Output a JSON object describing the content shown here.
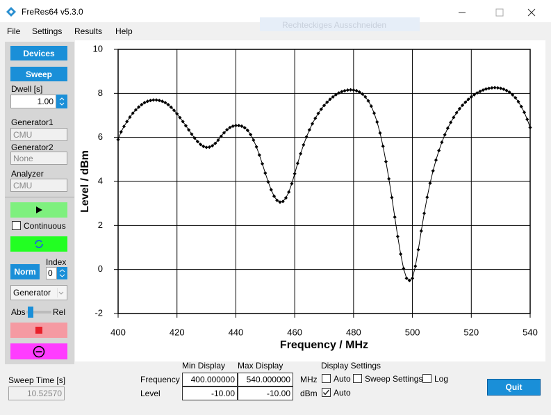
{
  "title_bar": {
    "title": "FreRes64 v5.3.0"
  },
  "menu": [
    "File",
    "Settings",
    "Results",
    "Help"
  ],
  "overlay_hint": "Rechteckiges Ausschneiden",
  "side_panel": {
    "devices": "Devices",
    "sweep": "Sweep",
    "dwell_label": "Dwell [s]",
    "dwell_value": "1.00",
    "generator1_label": "Generator1",
    "generator1_value": "CMU",
    "generator2_label": "Generator2",
    "generator2_value": "None",
    "analyzer_label": "Analyzer",
    "analyzer_value": "CMU",
    "continuous": "Continuous",
    "norm": "Norm",
    "index_label": "Index",
    "index_value": "0",
    "combo": "Generator",
    "abs": "Abs",
    "rel": "Rel"
  },
  "chart_data": {
    "type": "line",
    "x_label": "Frequency / MHz",
    "y_label": "Level / dBm",
    "color": "#000000",
    "grid": true,
    "xlim": [
      400,
      540
    ],
    "xticks": [
      400,
      420,
      440,
      460,
      480,
      500,
      520,
      540
    ],
    "ylim": [
      -2,
      10
    ],
    "yticks": [
      -2,
      0,
      2,
      4,
      6,
      8,
      10
    ],
    "x": [
      400,
      401,
      402,
      403,
      404,
      405,
      406,
      407,
      408,
      409,
      410,
      411,
      412,
      413,
      414,
      415,
      416,
      417,
      418,
      419,
      420,
      421,
      422,
      423,
      424,
      425,
      426,
      427,
      428,
      429,
      430,
      431,
      432,
      433,
      434,
      435,
      436,
      437,
      438,
      439,
      440,
      441,
      442,
      443,
      444,
      445,
      446,
      447,
      448,
      449,
      450,
      451,
      452,
      453,
      454,
      455,
      456,
      457,
      458,
      459,
      460,
      461,
      462,
      463,
      464,
      465,
      466,
      467,
      468,
      469,
      470,
      471,
      472,
      473,
      474,
      475,
      476,
      477,
      478,
      479,
      480,
      481,
      482,
      483,
      484,
      485,
      486,
      487,
      488,
      489,
      490,
      491,
      492,
      493,
      494,
      495,
      496,
      497,
      498,
      499,
      500,
      501,
      502,
      503,
      504,
      505,
      506,
      507,
      508,
      509,
      510,
      511,
      512,
      513,
      514,
      515,
      516,
      517,
      518,
      519,
      520,
      521,
      522,
      523,
      524,
      525,
      526,
      527,
      528,
      529,
      530,
      531,
      532,
      533,
      534,
      535,
      536,
      537,
      538,
      539,
      540
    ],
    "values": [
      5.9,
      6.25,
      6.5,
      6.72,
      6.92,
      7.1,
      7.25,
      7.38,
      7.49,
      7.58,
      7.64,
      7.68,
      7.7,
      7.7,
      7.68,
      7.64,
      7.58,
      7.49,
      7.37,
      7.23,
      7.07,
      6.9,
      6.72,
      6.53,
      6.34,
      6.15,
      5.97,
      5.81,
      5.68,
      5.59,
      5.55,
      5.56,
      5.62,
      5.73,
      5.88,
      6.05,
      6.21,
      6.35,
      6.45,
      6.51,
      6.54,
      6.54,
      6.51,
      6.44,
      6.32,
      6.13,
      5.88,
      5.57,
      5.2,
      4.8,
      4.38,
      3.98,
      3.62,
      3.33,
      3.14,
      3.06,
      3.09,
      3.25,
      3.52,
      3.9,
      4.35,
      4.82,
      5.26,
      5.66,
      6.02,
      6.34,
      6.62,
      6.87,
      7.09,
      7.28,
      7.45,
      7.6,
      7.73,
      7.84,
      7.94,
      8.02,
      8.08,
      8.12,
      8.15,
      8.16,
      8.15,
      8.12,
      8.06,
      7.97,
      7.84,
      7.66,
      7.42,
      7.1,
      6.7,
      6.2,
      5.6,
      4.9,
      4.12,
      3.27,
      2.38,
      1.5,
      0.7,
      0.04,
      -0.4,
      -0.5,
      -0.4,
      0.15,
      0.9,
      1.75,
      2.55,
      3.28,
      3.92,
      4.48,
      4.97,
      5.4,
      5.78,
      6.12,
      6.42,
      6.68,
      6.91,
      7.12,
      7.3,
      7.46,
      7.6,
      7.73,
      7.84,
      7.94,
      8.02,
      8.09,
      8.15,
      8.2,
      8.23,
      8.25,
      8.26,
      8.25,
      8.23,
      8.19,
      8.13,
      8.05,
      7.94,
      7.8,
      7.62,
      7.4,
      7.14,
      6.82,
      6.45
    ]
  },
  "display": {
    "min_header": "Min Display",
    "max_header": "Max Display",
    "frequency_label": "Frequency",
    "level_label": "Level",
    "freq_min": "400.000000",
    "freq_max": "540.000000",
    "freq_unit": "MHz",
    "level_min": "-10.00",
    "level_max": "-10.00",
    "level_unit": "dBm"
  },
  "display_settings": {
    "title": "Display Settings",
    "auto_freq": "Auto",
    "sweep_settings": "Sweep Settings",
    "log": "Log",
    "auto_level": "Auto"
  },
  "sweep_time": {
    "label": "Sweep Time [s]",
    "value": "10.52570"
  },
  "quit": "Quit"
}
